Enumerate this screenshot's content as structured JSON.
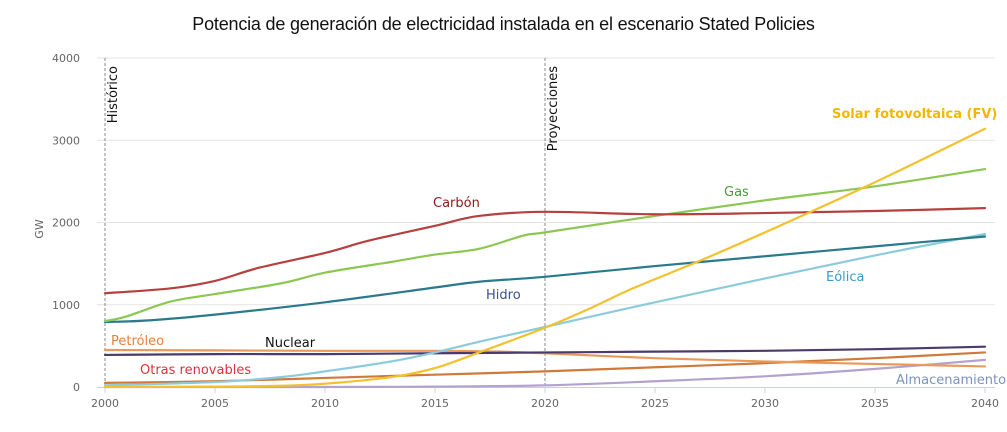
{
  "chart_data": {
    "type": "line",
    "title": "Potencia de generación de electricidad instalada en el escenario Stated Policies",
    "xlabel": "",
    "ylabel": "GW",
    "xlim": [
      2000,
      2040
    ],
    "ylim": [
      0,
      4000
    ],
    "xticks": [
      2000,
      2005,
      2010,
      2015,
      2020,
      2025,
      2030,
      2035,
      2040
    ],
    "yticks": [
      0,
      1000,
      2000,
      3000,
      4000
    ],
    "grid": true,
    "legend": "inline labels next to lines",
    "annotations": [
      {
        "text": "Histórico",
        "x": 2000
      },
      {
        "text": "Proyecciones",
        "x": 2020
      }
    ],
    "series": [
      {
        "name": "Carbón",
        "color": "#b5403f",
        "label_color": "#8b1a1a",
        "x": [
          2000,
          2003,
          2005,
          2007,
          2010,
          2012,
          2015,
          2017,
          2020,
          2025,
          2030,
          2035,
          2040
        ],
        "values": [
          1140,
          1200,
          1290,
          1450,
          1630,
          1780,
          1960,
          2080,
          2130,
          2100,
          2115,
          2140,
          2175
        ]
      },
      {
        "name": "Gas",
        "color": "#8cc653",
        "label_color": "#4a9a3a",
        "x": [
          2000,
          2001,
          2003,
          2005,
          2008,
          2010,
          2013,
          2015,
          2017,
          2019,
          2020,
          2025,
          2030,
          2035,
          2040
        ],
        "values": [
          800,
          860,
          1040,
          1130,
          1260,
          1390,
          1520,
          1610,
          1680,
          1840,
          1880,
          2080,
          2270,
          2440,
          2650
        ]
      },
      {
        "name": "Hidro",
        "color": "#2a7a8c",
        "label_color": "#3b4f8c",
        "x": [
          2000,
          2002,
          2005,
          2010,
          2015,
          2017,
          2020,
          2025,
          2030,
          2035,
          2040
        ],
        "values": [
          790,
          810,
          880,
          1030,
          1210,
          1280,
          1340,
          1470,
          1590,
          1710,
          1830
        ]
      },
      {
        "name": "Solar fotovoltaica (FV)",
        "color": "#f2c12e",
        "label_color": "#f2b705",
        "x": [
          2000,
          2005,
          2008,
          2010,
          2013,
          2015,
          2017,
          2020,
          2022,
          2024,
          2027,
          2030,
          2035,
          2040
        ],
        "values": [
          0,
          5,
          15,
          40,
          120,
          230,
          420,
          720,
          950,
          1200,
          1530,
          1880,
          2490,
          3140
        ]
      },
      {
        "name": "Eólica",
        "color": "#8ccbdb",
        "label_color": "#3a9ac4",
        "x": [
          2000,
          2005,
          2008,
          2010,
          2013,
          2015,
          2017,
          2020,
          2025,
          2030,
          2035,
          2040
        ],
        "values": [
          20,
          60,
          120,
          190,
          310,
          420,
          550,
          730,
          1030,
          1320,
          1600,
          1860
        ]
      },
      {
        "name": "Nuclear",
        "color": "#4b3b6b",
        "label_color": "#111111",
        "x": [
          2000,
          2005,
          2010,
          2015,
          2020,
          2025,
          2030,
          2035,
          2040
        ],
        "values": [
          390,
          400,
          400,
          410,
          420,
          430,
          440,
          460,
          490
        ]
      },
      {
        "name": "Petróleo",
        "color": "#e89a5c",
        "label_color": "#e8803a",
        "x": [
          2000,
          2005,
          2010,
          2015,
          2018,
          2020,
          2025,
          2030,
          2035,
          2040
        ],
        "values": [
          450,
          445,
          440,
          440,
          430,
          410,
          350,
          310,
          280,
          250
        ]
      },
      {
        "name": "Otras renovables",
        "color": "#d07a3a",
        "label_color": "#d6343a",
        "x": [
          2000,
          2005,
          2010,
          2015,
          2020,
          2025,
          2030,
          2035,
          2040
        ],
        "values": [
          50,
          70,
          110,
          150,
          190,
          240,
          290,
          350,
          420
        ]
      },
      {
        "name": "Almacenamiento",
        "color": "#b3a3cc",
        "label_color": "#7b93b8",
        "x": [
          2000,
          2010,
          2015,
          2020,
          2025,
          2030,
          2035,
          2040
        ],
        "values": [
          0,
          0,
          5,
          20,
          70,
          130,
          220,
          330
        ]
      }
    ]
  }
}
